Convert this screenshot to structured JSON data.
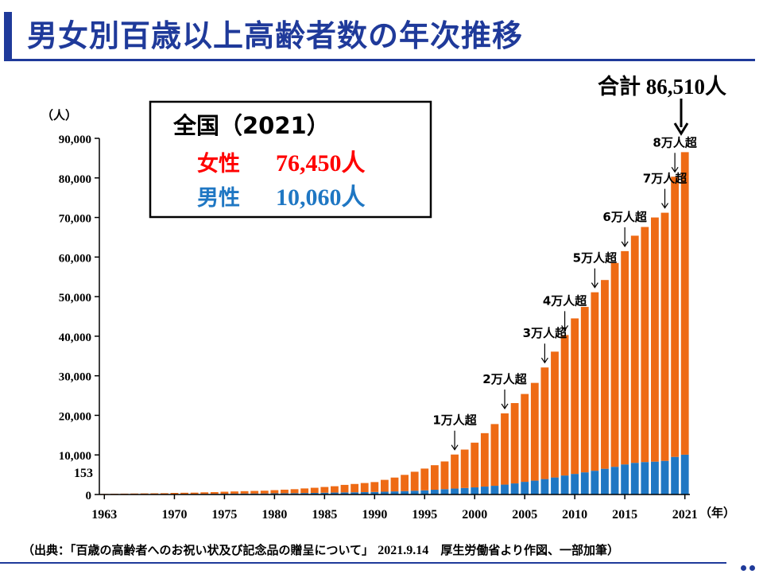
{
  "title": "男女別百歳以上高齢者数の年次推移",
  "source": {
    "prefix": "（出典：「百歳の高齢者へのお祝い状及び記念品の贈呈について」",
    "date": "2021.9.14",
    "suffix": "厚生労働省より作図、一部加筆）"
  },
  "info_box": {
    "heading": "全国（2021）",
    "female_label": "女性",
    "female_value": "76,450人",
    "male_label": "男性",
    "male_value": "10,060人"
  },
  "total_note": "合計 86,510人",
  "first_value_label": "153",
  "colors": {
    "female": "#ee6a14",
    "male": "#1f77c3",
    "title": "#1f3a9a",
    "female_text": "#ff0000",
    "male_text": "#1f77c3"
  },
  "chart_data": {
    "type": "bar",
    "stacked": true,
    "title": "男女別百歳以上高齢者数の年次推移",
    "ylabel": "（人）",
    "xlabel": "（年）",
    "ylim": [
      0,
      90000
    ],
    "yticks": [
      "0",
      "10,000",
      "20,000",
      "30,000",
      "40,000",
      "50,000",
      "60,000",
      "70,000",
      "80,000",
      "90,000"
    ],
    "ytick_values": [
      0,
      10000,
      20000,
      30000,
      40000,
      50000,
      60000,
      70000,
      80000,
      90000
    ],
    "xtick_labels": [
      "1963",
      "1970",
      "1975",
      "1980",
      "1985",
      "1990",
      "1995",
      "2000",
      "2005",
      "2010",
      "2015",
      "2021"
    ],
    "xtick_years": [
      1963,
      1970,
      1975,
      1980,
      1985,
      1990,
      1995,
      2000,
      2005,
      2010,
      2015,
      2021
    ],
    "categories": [
      1963,
      1964,
      1965,
      1966,
      1967,
      1968,
      1969,
      1970,
      1971,
      1972,
      1973,
      1974,
      1975,
      1976,
      1977,
      1978,
      1979,
      1980,
      1981,
      1982,
      1983,
      1984,
      1985,
      1986,
      1987,
      1988,
      1989,
      1990,
      1991,
      1992,
      1993,
      1994,
      1995,
      1996,
      1997,
      1998,
      1999,
      2000,
      2001,
      2002,
      2003,
      2004,
      2005,
      2006,
      2007,
      2008,
      2009,
      2010,
      2011,
      2012,
      2013,
      2014,
      2015,
      2016,
      2017,
      2018,
      2019,
      2020,
      2021
    ],
    "series": [
      {
        "name": "男性",
        "values": [
          20,
          30,
          40,
          50,
          60,
          70,
          80,
          100,
          110,
          120,
          150,
          170,
          200,
          220,
          240,
          250,
          260,
          300,
          320,
          340,
          380,
          400,
          450,
          490,
          530,
          560,
          600,
          640,
          700,
          780,
          860,
          950,
          1050,
          1200,
          1350,
          1500,
          1650,
          1800,
          2000,
          2200,
          2500,
          2800,
          3200,
          3500,
          3900,
          4300,
          4800,
          5200,
          5600,
          6000,
          6500,
          7000,
          7600,
          8000,
          8200,
          8300,
          8500,
          9500,
          10060
        ]
      },
      {
        "name": "女性",
        "values": [
          133,
          160,
          180,
          200,
          220,
          230,
          250,
          300,
          330,
          350,
          400,
          430,
          500,
          550,
          600,
          650,
          700,
          800,
          900,
          1000,
          1150,
          1300,
          1450,
          1600,
          1900,
          2100,
          2300,
          2500,
          3000,
          3500,
          4100,
          4800,
          5500,
          6200,
          7000,
          8600,
          9700,
          11300,
          13500,
          15600,
          18000,
          20300,
          22200,
          24700,
          28200,
          31800,
          35500,
          39300,
          41800,
          45100,
          47700,
          51500,
          53900,
          57400,
          59400,
          61700,
          62700,
          70800,
          76450
        ]
      }
    ],
    "milestones": [
      {
        "label": "1万人超",
        "year": 1998
      },
      {
        "label": "2万人超",
        "year": 2003
      },
      {
        "label": "3万人超",
        "year": 2007
      },
      {
        "label": "4万人超",
        "year": 2009
      },
      {
        "label": "5万人超",
        "year": 2012
      },
      {
        "label": "6万人超",
        "year": 2015
      },
      {
        "label": "7万人超",
        "year": 2019
      },
      {
        "label": "8万人超",
        "year": 2020
      }
    ]
  }
}
